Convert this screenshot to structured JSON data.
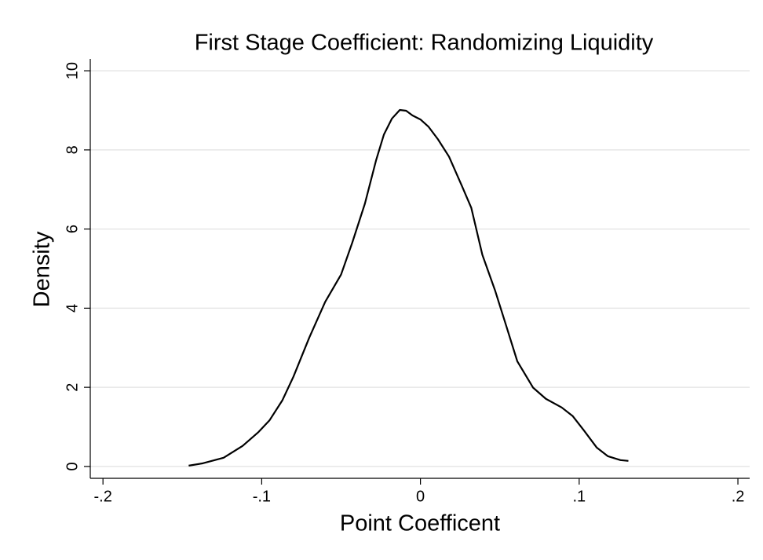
{
  "chart_data": {
    "type": "line",
    "title": "First Stage Coefficient: Randomizing Liquidity",
    "x_label": "Point Coefficent",
    "y_label": "Density",
    "color": "#000000",
    "x": [
      -0.146,
      -0.137,
      -0.124,
      -0.112,
      -0.102,
      -0.095,
      -0.087,
      -0.08,
      -0.07,
      -0.06,
      -0.05,
      -0.043,
      -0.035,
      -0.028,
      -0.023,
      -0.018,
      -0.013,
      -0.009,
      -0.005,
      0,
      0.005,
      0.011,
      0.018,
      0.026,
      0.032,
      0.039,
      0.047,
      0.054,
      0.061,
      0.071,
      0.079,
      0.089,
      0.096,
      0.103,
      0.111,
      0.118,
      0.126,
      0.131
    ],
    "values": [
      0.02,
      0.08,
      0.22,
      0.52,
      0.87,
      1.17,
      1.67,
      2.27,
      3.26,
      4.16,
      4.85,
      5.65,
      6.64,
      7.73,
      8.39,
      8.79,
      9.01,
      8.99,
      8.87,
      8.77,
      8.59,
      8.27,
      7.83,
      7.1,
      6.54,
      5.35,
      4.45,
      3.56,
      2.66,
      1.99,
      1.71,
      1.49,
      1.27,
      0.91,
      0.48,
      0.26,
      0.16,
      0.14
    ],
    "xlim": [
      -0.208,
      0.2074
    ],
    "ylim": [
      -0.3,
      10.3
    ],
    "xticks": [
      {
        "value": -0.2,
        "label": "-.2"
      },
      {
        "value": -0.1,
        "label": "-.1"
      },
      0,
      {
        "value": 0.1,
        "label": ".1"
      },
      {
        "value": 0.2,
        "label": ".2"
      }
    ],
    "yticks": [
      0,
      2,
      4,
      6,
      8,
      10
    ],
    "grid": true
  }
}
